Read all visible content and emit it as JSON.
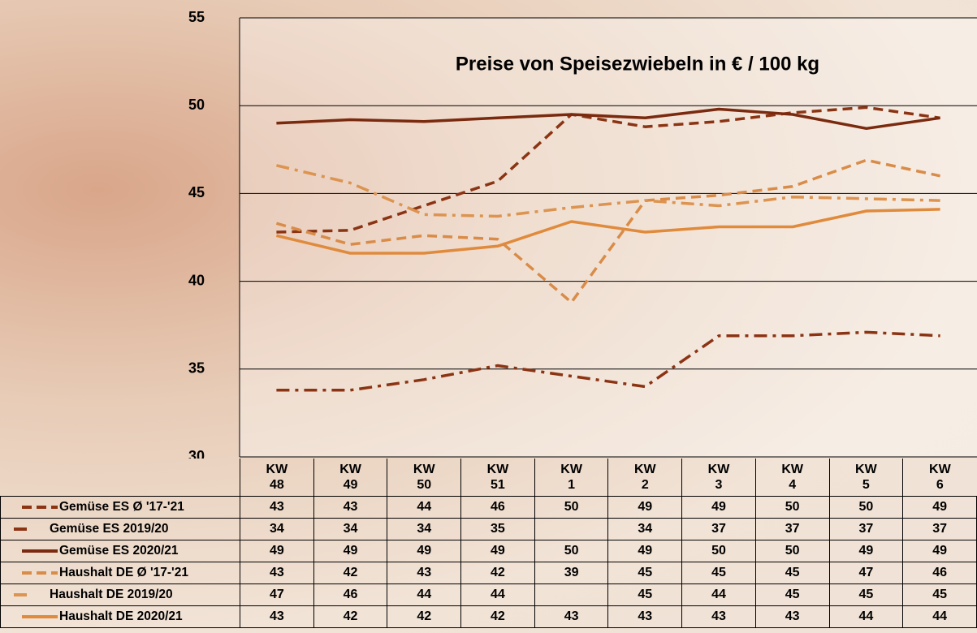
{
  "chart_data": {
    "type": "line",
    "title": "Preise von Speisezwiebeln in € / 100 kg",
    "categories": [
      "KW 48",
      "KW 49",
      "KW 50",
      "KW 51",
      "KW 1",
      "KW 2",
      "KW 3",
      "KW 4",
      "KW 5",
      "KW 6"
    ],
    "ylim": [
      30,
      55
    ],
    "yticks": [
      30,
      35,
      40,
      45,
      50,
      55
    ],
    "grid": true,
    "series": [
      {
        "name": "Gemüse ES Ø '17-'21",
        "color": "#8b3414",
        "dash": "dashed",
        "values": [
          42.8,
          42.9,
          44.3,
          45.7,
          49.5,
          48.8,
          49.1,
          49.6,
          49.9,
          49.3
        ],
        "value_labels": [
          "43",
          "43",
          "44",
          "46",
          "50",
          "49",
          "49",
          "50",
          "50",
          "49"
        ]
      },
      {
        "name": "Gemüse ES 2019/20",
        "color": "#8b3414",
        "dash": "dashdot",
        "values": [
          33.8,
          33.8,
          34.4,
          35.2,
          34.6,
          34.0,
          36.9,
          36.9,
          37.1,
          36.9
        ],
        "value_labels": [
          "34",
          "34",
          "34",
          "35",
          null,
          "34",
          "37",
          "37",
          "37",
          "37"
        ]
      },
      {
        "name": "Gemüse ES 2020/21",
        "color": "#7a2a0e",
        "dash": "solid",
        "values": [
          49.0,
          49.2,
          49.1,
          49.3,
          49.5,
          49.3,
          49.8,
          49.5,
          48.7,
          49.3
        ],
        "value_labels": [
          "49",
          "49",
          "49",
          "49",
          "50",
          "49",
          "50",
          "50",
          "49",
          "49"
        ]
      },
      {
        "name": "Haushalt DE Ø '17-'21",
        "color": "#d98c48",
        "dash": "dashed",
        "values": [
          43.3,
          42.1,
          42.6,
          42.4,
          38.8,
          44.6,
          44.9,
          45.4,
          46.9,
          46.0
        ],
        "value_labels": [
          "43",
          "42",
          "43",
          "42",
          "39",
          "45",
          "45",
          "45",
          "47",
          "46"
        ]
      },
      {
        "name": "Haushalt DE 2019/20",
        "color": "#dc9450",
        "dash": "dashdot",
        "values": [
          46.6,
          45.6,
          43.8,
          43.7,
          44.2,
          44.6,
          44.3,
          44.8,
          44.7,
          44.6
        ],
        "value_labels": [
          "47",
          "46",
          "44",
          "44",
          null,
          "45",
          "44",
          "45",
          "45",
          "45"
        ]
      },
      {
        "name": "Haushalt DE 2020/21",
        "color": "#e08a3c",
        "dash": "solid",
        "values": [
          42.6,
          41.6,
          41.6,
          42.0,
          43.4,
          42.8,
          43.1,
          43.1,
          44.0,
          44.1
        ],
        "value_labels": [
          "43",
          "42",
          "42",
          "42",
          "43",
          "43",
          "43",
          "43",
          "44",
          "44"
        ]
      }
    ]
  }
}
